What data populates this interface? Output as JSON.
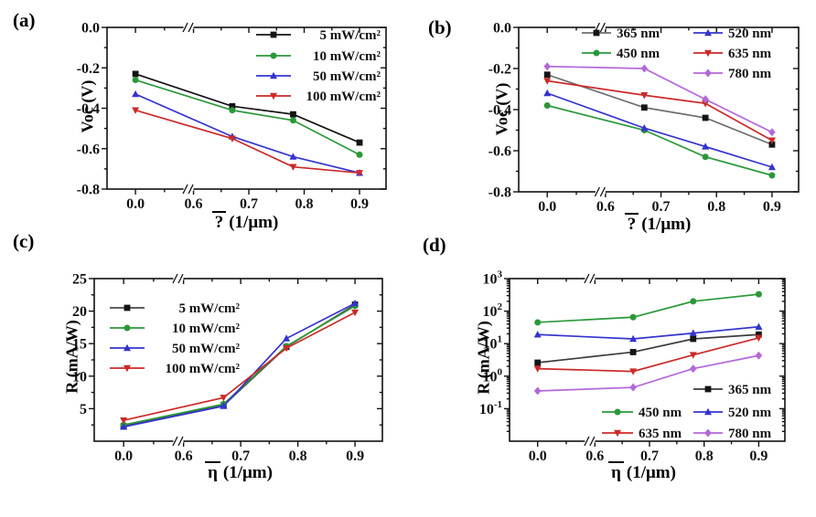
{
  "figure": {
    "background": "#ffffff"
  },
  "chart_data": [
    {
      "id": "a",
      "type": "line",
      "corner_label": "(a)",
      "ylabel": "Voc (V)",
      "xlabel_symbol": "?",
      "xlabel_unit": "(1/μm)",
      "x_axis": {
        "tick_values": [
          0,
          0.6,
          0.7,
          0.8,
          0.9
        ],
        "tick_labels": [
          "0.0",
          "0.6",
          "0.7",
          "0.8",
          "0.9"
        ],
        "minor_tick_values": [
          0.65,
          0.75,
          0.85
        ],
        "axis_break": true
      },
      "y_axis": {
        "type": "linear",
        "min": -0.8,
        "max": 0,
        "tick_values": [
          0,
          -0.2,
          -0.4,
          -0.6,
          -0.8
        ],
        "tick_labels": [
          "0.0",
          "-0.2",
          "-0.4",
          "-0.6",
          "-0.8"
        ],
        "minor_tick_values": [
          -0.1,
          -0.3,
          -0.5,
          -0.7
        ]
      },
      "x_values": [
        0,
        0.67,
        0.78,
        0.9
      ],
      "series": [
        {
          "name": "5 mW/cm²",
          "marker": "square",
          "color": "#141414",
          "line_color": "#141414",
          "values": [
            -0.23,
            -0.39,
            -0.43,
            -0.57
          ]
        },
        {
          "name": "10 mW/cm²",
          "marker": "circle",
          "color": "#2a9839",
          "line_color": "#2a9839",
          "values": [
            -0.26,
            -0.41,
            -0.46,
            -0.63
          ]
        },
        {
          "name": "50 mW/cm²",
          "marker": "triangle-up",
          "color": "#3434cf",
          "line_color": "#3434cf",
          "values": [
            -0.33,
            -0.54,
            -0.64,
            -0.72
          ]
        },
        {
          "name": "100 mW/cm²",
          "marker": "triangle-down",
          "color": "#cc2929",
          "line_color": "#cc2929",
          "values": [
            -0.41,
            -0.55,
            -0.69,
            -0.72
          ]
        }
      ],
      "legend_position": "top-right"
    },
    {
      "id": "b",
      "type": "line",
      "corner_label": "(b)",
      "ylabel": "Voc (V)",
      "xlabel_symbol": "?",
      "xlabel_unit": "(1/μm)",
      "x_axis": {
        "tick_values": [
          0,
          0.6,
          0.7,
          0.8,
          0.9
        ],
        "tick_labels": [
          "0.0",
          "0.6",
          "0.7",
          "0.8",
          "0.9"
        ],
        "minor_tick_values": [
          0.65,
          0.75,
          0.85
        ],
        "axis_break": true
      },
      "y_axis": {
        "type": "linear",
        "min": -0.8,
        "max": 0,
        "tick_values": [
          0,
          -0.2,
          -0.4,
          -0.6,
          -0.8
        ],
        "tick_labels": [
          "0.0",
          "-0.2",
          "-0.4",
          "-0.6",
          "-0.8"
        ],
        "minor_tick_values": [
          -0.1,
          -0.3,
          -0.5,
          -0.7
        ]
      },
      "x_values": [
        0,
        0.67,
        0.78,
        0.9
      ],
      "series": [
        {
          "name": "365 nm",
          "marker": "square",
          "color": "#141414",
          "line_color": "#6e6e6e",
          "values": [
            -0.23,
            -0.39,
            -0.44,
            -0.57
          ]
        },
        {
          "name": "450 nm",
          "marker": "circle",
          "color": "#2a9839",
          "line_color": "#2a9839",
          "values": [
            -0.38,
            -0.5,
            -0.63,
            -0.72
          ]
        },
        {
          "name": "520 nm",
          "marker": "triangle-up",
          "color": "#3434cf",
          "line_color": "#3434cf",
          "values": [
            -0.32,
            -0.49,
            -0.58,
            -0.68
          ]
        },
        {
          "name": "635 nm",
          "marker": "triangle-down",
          "color": "#cc2929",
          "line_color": "#cc2929",
          "values": [
            -0.26,
            -0.33,
            -0.37,
            -0.55
          ]
        },
        {
          "name": "780 nm",
          "marker": "diamond",
          "color": "#b368d9",
          "line_color": "#b368d9",
          "values": [
            -0.19,
            -0.2,
            -0.35,
            -0.51
          ]
        }
      ],
      "legend_position": "top-right-two-columns"
    },
    {
      "id": "c",
      "type": "line",
      "corner_label": "(c)",
      "ylabel": "R (mA/W)",
      "xlabel_symbol": "η",
      "xlabel_unit": "(1/μm)",
      "x_axis": {
        "tick_values": [
          0,
          0.6,
          0.7,
          0.8,
          0.9
        ],
        "tick_labels": [
          "0.0",
          "0.6",
          "0.7",
          "0.8",
          "0.9"
        ],
        "minor_tick_values": [
          0.65,
          0.75,
          0.85
        ],
        "axis_break": true
      },
      "y_axis": {
        "type": "linear",
        "min": 0,
        "max": 25,
        "tick_values": [
          5,
          10,
          15,
          20,
          25
        ],
        "tick_labels": [
          "5",
          "10",
          "15",
          "20",
          "25"
        ],
        "minor_tick_values": [
          2.5,
          7.5,
          12.5,
          17.5,
          22.5
        ]
      },
      "x_values": [
        0,
        0.67,
        0.78,
        0.9
      ],
      "series": [
        {
          "name": "5 mW/cm²",
          "marker": "square",
          "color": "#141414",
          "line_color": "#4a4a4a",
          "values": [
            2.3,
            5.5,
            14.5,
            21.0
          ]
        },
        {
          "name": "10 mW/cm²",
          "marker": "circle",
          "color": "#2a9839",
          "line_color": "#2a9839",
          "values": [
            2.5,
            5.7,
            14.6,
            20.8
          ]
        },
        {
          "name": "50 mW/cm²",
          "marker": "triangle-up",
          "color": "#3434cf",
          "line_color": "#3434cf",
          "values": [
            2.2,
            5.4,
            15.8,
            21.2
          ]
        },
        {
          "name": "100 mW/cm²",
          "marker": "triangle-down",
          "color": "#cc2929",
          "line_color": "#cc2929",
          "values": [
            3.2,
            6.7,
            14.3,
            19.8
          ]
        }
      ],
      "legend_position": "upper-left"
    },
    {
      "id": "d",
      "type": "line",
      "corner_label": "(d)",
      "ylabel": "R (mA/W)",
      "xlabel_symbol": "η",
      "xlabel_unit": "(1/μm)",
      "x_axis": {
        "tick_values": [
          0,
          0.6,
          0.7,
          0.8,
          0.9
        ],
        "tick_labels": [
          "0.0",
          "0.6",
          "0.7",
          "0.8",
          "0.9"
        ],
        "minor_tick_values": [
          0.65,
          0.75,
          0.85
        ],
        "axis_break": true
      },
      "y_axis": {
        "type": "log",
        "min": 0.01,
        "max": 1000,
        "tick_values": [
          1000,
          100,
          10,
          1,
          0.1
        ],
        "tick_labels": [
          {
            "base": "10",
            "exp": "3"
          },
          {
            "base": "10",
            "exp": "2"
          },
          {
            "base": "10",
            "exp": "1"
          },
          {
            "base": "10",
            "exp": "0"
          },
          {
            "base": "10",
            "exp": "-1"
          }
        ],
        "log_minor": true
      },
      "x_values": [
        0,
        0.67,
        0.78,
        0.9
      ],
      "series": [
        {
          "name": "365 nm",
          "marker": "square",
          "color": "#141414",
          "line_color": "#3c3c3c",
          "values": [
            2.6,
            5.5,
            14,
            19
          ]
        },
        {
          "name": "450 nm",
          "marker": "circle",
          "color": "#2a9839",
          "line_color": "#2a9839",
          "values": [
            45,
            65,
            200,
            330
          ]
        },
        {
          "name": "520 nm",
          "marker": "triangle-up",
          "color": "#3434cf",
          "line_color": "#3434cf",
          "values": [
            19,
            14,
            21,
            33
          ]
        },
        {
          "name": "635 nm",
          "marker": "triangle-down",
          "color": "#cc2929",
          "line_color": "#cc2929",
          "values": [
            1.7,
            1.4,
            4.5,
            15
          ]
        },
        {
          "name": "780 nm",
          "marker": "diamond",
          "color": "#b368d9",
          "line_color": "#b368d9",
          "values": [
            0.35,
            0.45,
            1.7,
            4.3
          ]
        }
      ],
      "legend_position": "bottom-right-two-columns"
    }
  ]
}
